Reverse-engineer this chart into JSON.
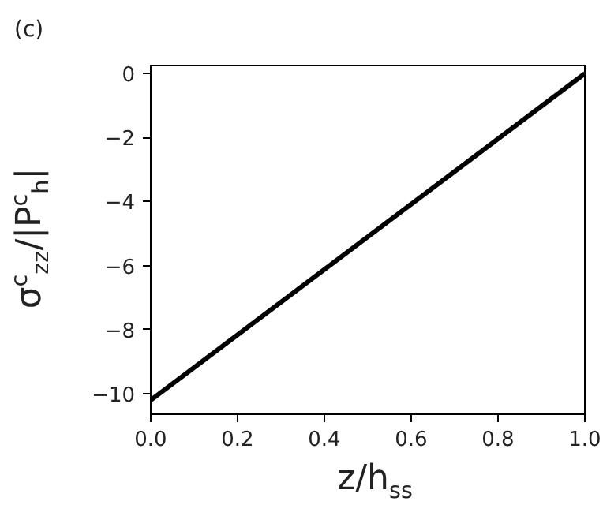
{
  "chart_data": {
    "type": "line",
    "x": [
      0.0,
      1.0
    ],
    "series": [
      {
        "color": "#000000",
        "values": [
          -10.2,
          0.0
        ]
      }
    ],
    "xlabel": "z/h$_{ss}$",
    "ylabel": "σ$^{c}$$_{zz}$/|P$^{c}$$_{h}$|",
    "annotations": [
      "(c)"
    ],
    "xlim": [
      0.0,
      1.0
    ],
    "xticks": [
      {
        "value": 0,
        "label": "0.0"
      },
      0.2,
      0.4,
      0.6,
      0.8,
      {
        "value": 1,
        "label": "1.0"
      }
    ],
    "ylim": [
      -10.64,
      0.25
    ],
    "yticks": [
      -10,
      -8,
      -6,
      -4,
      -2,
      0
    ],
    "grid": false
  }
}
